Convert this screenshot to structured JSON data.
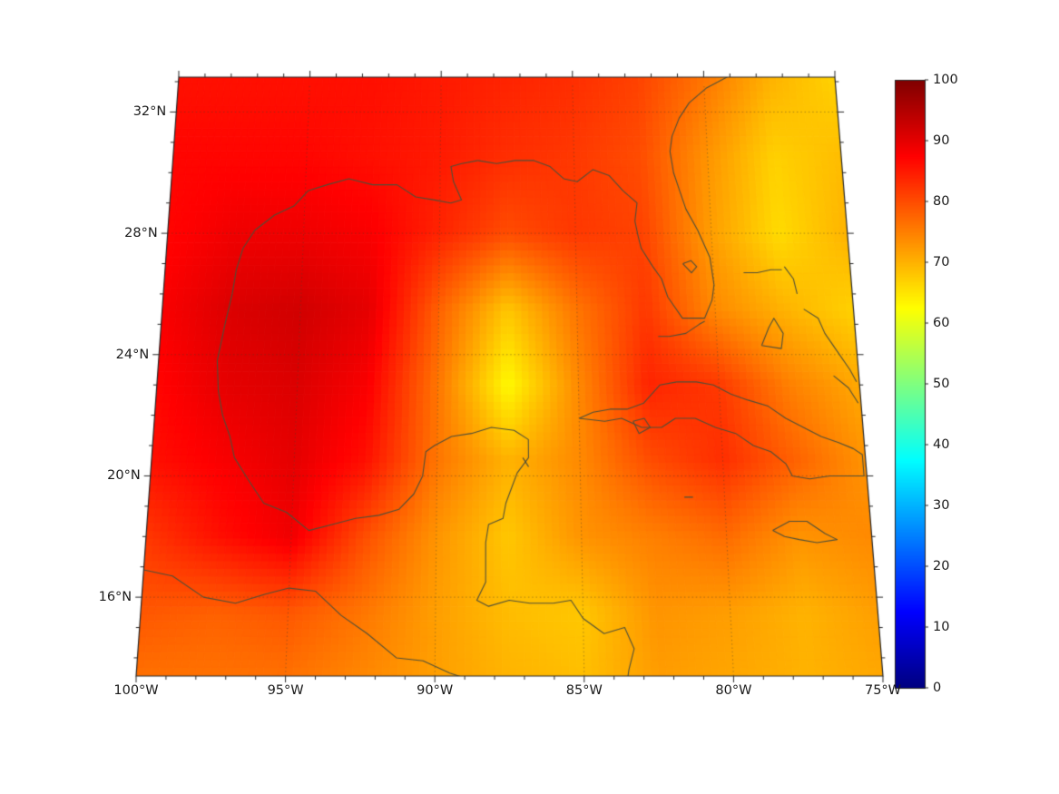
{
  "figure": {
    "background": "#ffffff",
    "frame_color": "#262626",
    "coastline_color": "#4f4f38"
  },
  "chart_data": {
    "type": "heatmap",
    "title": "",
    "projection": "lambert-conformal",
    "region": "Gulf of Mexico and Caribbean",
    "x_axis": {
      "label": "",
      "ticks": [
        {
          "label": "100°W",
          "lon": -100
        },
        {
          "label": "95°W",
          "lon": -95
        },
        {
          "label": "90°W",
          "lon": -90
        },
        {
          "label": "85°W",
          "lon": -85
        },
        {
          "label": "80°W",
          "lon": -80
        },
        {
          "label": "75°W",
          "lon": -75
        }
      ]
    },
    "y_axis": {
      "label": "",
      "ticks": [
        {
          "label": "16°N",
          "lat": 16
        },
        {
          "label": "20°N",
          "lat": 20
        },
        {
          "label": "24°N",
          "lat": 24
        },
        {
          "label": "28°N",
          "lat": 28
        },
        {
          "label": "32°N",
          "lat": 32
        }
      ]
    },
    "colorbar": {
      "min": 0,
      "max": 100,
      "colormap": "jet",
      "ticks": [
        {
          "label": "0",
          "value": 0
        },
        {
          "label": "10",
          "value": 10
        },
        {
          "label": "20",
          "value": 20
        },
        {
          "label": "30",
          "value": 30
        },
        {
          "label": "40",
          "value": 40
        },
        {
          "label": "50",
          "value": 50
        },
        {
          "label": "60",
          "value": 60
        },
        {
          "label": "70",
          "value": 70
        },
        {
          "label": "80",
          "value": 80
        },
        {
          "label": "90",
          "value": 90
        },
        {
          "label": "100",
          "value": 100
        }
      ]
    },
    "gridlines": {
      "lons": [
        -95,
        -90,
        -85,
        -80
      ],
      "lats": [
        16,
        20,
        24,
        28,
        32
      ],
      "style": "dotted"
    },
    "grid": {
      "lons": [
        -100,
        -97.5,
        -95,
        -92.5,
        -90,
        -87.5,
        -85,
        -82.5,
        -80,
        -77.5,
        -75
      ],
      "lats": [
        33,
        30.5,
        28,
        25.5,
        23,
        20.5,
        18,
        15.5,
        13
      ],
      "values": [
        [
          86,
          86,
          86,
          86,
          85,
          84,
          83,
          81,
          76,
          70,
          67
        ],
        [
          87,
          87,
          87,
          86,
          85,
          83,
          82,
          80,
          73,
          67,
          69
        ],
        [
          87,
          89,
          89,
          88,
          84,
          80,
          82,
          81,
          72,
          66,
          70
        ],
        [
          88,
          91,
          92,
          90,
          78,
          68,
          76,
          82,
          74,
          70,
          67
        ],
        [
          87,
          90,
          91,
          88,
          76,
          63,
          74,
          84,
          82,
          75,
          71
        ],
        [
          86,
          88,
          90,
          86,
          76,
          70,
          74,
          80,
          83,
          78,
          73
        ],
        [
          82,
          86,
          89,
          80,
          73,
          68,
          73,
          75,
          77,
          73,
          74
        ],
        [
          79,
          78,
          79,
          76,
          72,
          69,
          68,
          73,
          72,
          70,
          72
        ],
        [
          76,
          76,
          76,
          74,
          72,
          70,
          69,
          72,
          71,
          70,
          71
        ]
      ]
    },
    "coastlines": {
      "atlantic_us": [
        [
          -79.0,
          33.2
        ],
        [
          -79.9,
          32.8
        ],
        [
          -80.6,
          32.3
        ],
        [
          -81.0,
          31.8
        ],
        [
          -81.3,
          31.2
        ],
        [
          -81.4,
          30.7
        ],
        [
          -81.3,
          30.0
        ],
        [
          -81.1,
          29.4
        ]
      ],
      "florida": [
        [
          -81.1,
          29.4
        ],
        [
          -80.9,
          28.8
        ],
        [
          -80.5,
          28.1
        ],
        [
          -80.1,
          27.2
        ],
        [
          -80.0,
          26.3
        ],
        [
          -80.1,
          25.8
        ],
        [
          -80.4,
          25.2
        ],
        [
          -80.9,
          25.2
        ],
        [
          -81.2,
          25.2
        ],
        [
          -81.7,
          25.9
        ],
        [
          -81.9,
          26.5
        ],
        [
          -82.2,
          26.9
        ],
        [
          -82.6,
          27.5
        ],
        [
          -82.7,
          27.9
        ],
        [
          -82.8,
          28.4
        ],
        [
          -82.7,
          29.0
        ],
        [
          -83.2,
          29.4
        ],
        [
          -83.7,
          29.9
        ],
        [
          -84.3,
          30.1
        ],
        [
          -84.9,
          29.7
        ],
        [
          -85.4,
          29.8
        ],
        [
          -85.9,
          30.2
        ],
        [
          -86.5,
          30.4
        ],
        [
          -87.2,
          30.4
        ],
        [
          -87.9,
          30.3
        ],
        [
          -88.6,
          30.4
        ]
      ],
      "gulf_coast_mexico": [
        [
          -88.6,
          30.4
        ],
        [
          -89.2,
          30.3
        ],
        [
          -89.6,
          30.2
        ],
        [
          -89.5,
          29.7
        ],
        [
          -89.2,
          29.1
        ],
        [
          -89.6,
          29.0
        ],
        [
          -90.2,
          29.1
        ],
        [
          -90.9,
          29.2
        ],
        [
          -91.6,
          29.6
        ],
        [
          -92.5,
          29.6
        ],
        [
          -93.4,
          29.8
        ],
        [
          -94.2,
          29.6
        ],
        [
          -94.9,
          29.4
        ],
        [
          -95.4,
          28.9
        ],
        [
          -96.1,
          28.6
        ],
        [
          -96.8,
          28.1
        ],
        [
          -97.2,
          27.5
        ],
        [
          -97.4,
          26.8
        ],
        [
          -97.5,
          26.0
        ],
        [
          -97.7,
          25.0
        ],
        [
          -97.9,
          23.8
        ],
        [
          -97.8,
          22.8
        ],
        [
          -97.6,
          22.0
        ],
        [
          -97.3,
          21.3
        ],
        [
          -97.1,
          20.6
        ],
        [
          -96.6,
          19.9
        ],
        [
          -96.0,
          19.1
        ],
        [
          -95.2,
          18.8
        ],
        [
          -94.4,
          18.2
        ],
        [
          -93.6,
          18.4
        ],
        [
          -92.8,
          18.6
        ],
        [
          -92.0,
          18.7
        ],
        [
          -91.3,
          18.9
        ],
        [
          -90.8,
          19.4
        ],
        [
          -90.5,
          20.0
        ],
        [
          -90.4,
          20.8
        ],
        [
          -90.1,
          21.0
        ],
        [
          -89.5,
          21.3
        ],
        [
          -88.8,
          21.4
        ],
        [
          -88.1,
          21.6
        ],
        [
          -87.3,
          21.5
        ],
        [
          -86.8,
          21.2
        ],
        [
          -86.8,
          20.6
        ],
        [
          -87.2,
          20.1
        ],
        [
          -87.4,
          19.6
        ],
        [
          -87.6,
          19.1
        ],
        [
          -87.7,
          18.6
        ],
        [
          -88.2,
          18.4
        ],
        [
          -88.3,
          17.8
        ],
        [
          -88.3,
          17.2
        ],
        [
          -88.3,
          16.5
        ],
        [
          -88.6,
          15.9
        ],
        [
          -88.2,
          15.7
        ],
        [
          -87.5,
          15.9
        ],
        [
          -86.8,
          15.8
        ],
        [
          -86.0,
          15.8
        ],
        [
          -85.4,
          15.9
        ],
        [
          -85.0,
          15.3
        ],
        [
          -84.3,
          14.8
        ],
        [
          -83.6,
          15.0
        ],
        [
          -83.3,
          14.3
        ],
        [
          -83.5,
          13.6
        ],
        [
          -83.6,
          13.0
        ]
      ],
      "pacific_centam": [
        [
          -100.0,
          16.9
        ],
        [
          -99.0,
          16.7
        ],
        [
          -97.9,
          16.0
        ],
        [
          -96.8,
          15.8
        ],
        [
          -95.8,
          16.1
        ],
        [
          -95.0,
          16.3
        ],
        [
          -94.1,
          16.2
        ],
        [
          -93.2,
          15.4
        ],
        [
          -92.3,
          14.8
        ],
        [
          -91.3,
          14.0
        ],
        [
          -90.4,
          13.9
        ],
        [
          -89.5,
          13.5
        ],
        [
          -88.6,
          13.2
        ],
        [
          -88.0,
          13.0
        ]
      ],
      "cuba": [
        [
          -85.0,
          21.9
        ],
        [
          -84.5,
          22.1
        ],
        [
          -83.9,
          22.2
        ],
        [
          -83.3,
          22.2
        ],
        [
          -82.7,
          22.4
        ],
        [
          -82.1,
          23.0
        ],
        [
          -81.5,
          23.1
        ],
        [
          -80.8,
          23.1
        ],
        [
          -80.2,
          23.0
        ],
        [
          -79.6,
          22.7
        ],
        [
          -79.0,
          22.5
        ],
        [
          -78.3,
          22.3
        ],
        [
          -77.7,
          21.9
        ],
        [
          -77.1,
          21.6
        ],
        [
          -76.5,
          21.3
        ],
        [
          -75.9,
          21.1
        ],
        [
          -75.4,
          20.9
        ],
        [
          -75.1,
          20.7
        ],
        [
          -75.1,
          20.0
        ],
        [
          -75.6,
          20.0
        ],
        [
          -76.3,
          20.0
        ],
        [
          -77.0,
          19.9
        ],
        [
          -77.6,
          20.0
        ],
        [
          -77.8,
          20.4
        ],
        [
          -78.3,
          20.8
        ],
        [
          -78.9,
          21.0
        ],
        [
          -79.5,
          21.4
        ],
        [
          -80.2,
          21.6
        ],
        [
          -80.9,
          21.9
        ],
        [
          -81.6,
          21.9
        ],
        [
          -82.1,
          21.6
        ],
        [
          -82.8,
          21.6
        ],
        [
          -83.5,
          21.9
        ],
        [
          -84.1,
          21.8
        ],
        [
          -85.0,
          21.9
        ]
      ],
      "isla_juventud": [
        [
          -83.1,
          21.8
        ],
        [
          -82.7,
          21.9
        ],
        [
          -82.5,
          21.6
        ],
        [
          -82.9,
          21.4
        ],
        [
          -83.1,
          21.8
        ]
      ],
      "jamaica": [
        [
          -78.4,
          18.2
        ],
        [
          -77.8,
          18.5
        ],
        [
          -77.2,
          18.5
        ],
        [
          -76.6,
          18.1
        ],
        [
          -76.2,
          17.9
        ],
        [
          -76.9,
          17.8
        ],
        [
          -77.5,
          17.9
        ],
        [
          -78.0,
          18.0
        ],
        [
          -78.4,
          18.2
        ]
      ],
      "cayman": [
        [
          -81.4,
          19.3
        ],
        [
          -81.1,
          19.3
        ]
      ],
      "grand_bahama": [
        [
          -78.9,
          26.7
        ],
        [
          -78.4,
          26.7
        ],
        [
          -77.9,
          26.8
        ],
        [
          -77.5,
          26.8
        ]
      ],
      "abaco": [
        [
          -77.4,
          26.9
        ],
        [
          -77.1,
          26.5
        ],
        [
          -77.0,
          26.0
        ]
      ],
      "andros": [
        [
          -78.4,
          24.3
        ],
        [
          -78.1,
          24.9
        ],
        [
          -77.9,
          25.2
        ],
        [
          -77.6,
          24.7
        ],
        [
          -77.7,
          24.2
        ],
        [
          -78.4,
          24.3
        ]
      ],
      "eleuthera": [
        [
          -76.8,
          25.5
        ],
        [
          -76.3,
          25.2
        ],
        [
          -76.1,
          24.7
        ],
        [
          -75.7,
          24.1
        ],
        [
          -75.3,
          23.5
        ],
        [
          -75.1,
          23.1
        ]
      ],
      "se_bahamas": [
        [
          -75.9,
          23.3
        ],
        [
          -75.4,
          22.9
        ],
        [
          -75.1,
          22.4
        ]
      ],
      "florida_keys": [
        [
          -80.4,
          25.1
        ],
        [
          -80.6,
          25.0
        ],
        [
          -81.1,
          24.7
        ],
        [
          -81.7,
          24.6
        ],
        [
          -82.1,
          24.6
        ]
      ],
      "okeechobee": [
        [
          -81.1,
          27.0
        ],
        [
          -80.8,
          27.1
        ],
        [
          -80.6,
          26.9
        ],
        [
          -80.8,
          26.7
        ],
        [
          -81.1,
          27.0
        ]
      ],
      "cozumel": [
        [
          -87.0,
          20.6
        ],
        [
          -86.8,
          20.3
        ]
      ]
    }
  }
}
